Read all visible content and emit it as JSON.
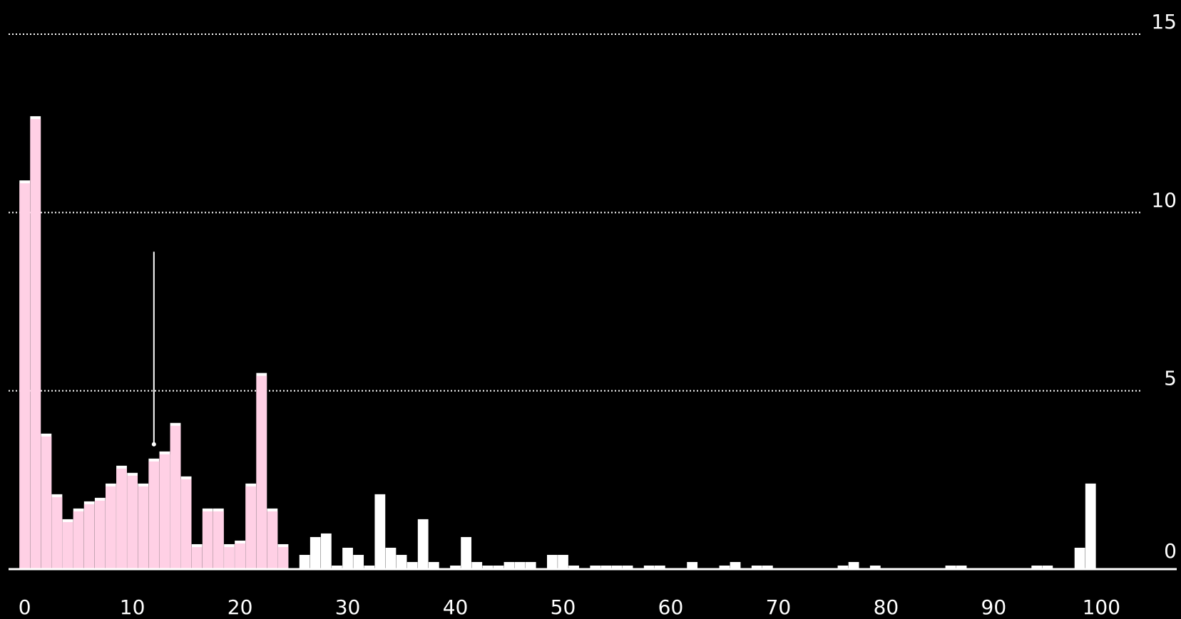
{
  "chart_data": {
    "type": "bar",
    "title": "",
    "xlabel": "",
    "ylabel": "",
    "xlim": [
      -1.5,
      107
    ],
    "ylim": [
      0,
      15
    ],
    "x_ticks": [
      0,
      10,
      20,
      30,
      40,
      50,
      60,
      70,
      80,
      90,
      100
    ],
    "x_tick_labels": [
      "0",
      "10",
      "20",
      "30",
      "40",
      "50",
      "60",
      "70",
      "80",
      "90",
      "100"
    ],
    "y_ticks": [
      0,
      5,
      10,
      15
    ],
    "y_tick_labels": [
      "0",
      "5",
      "10",
      "15"
    ],
    "y_axis_position": "right",
    "grid": "horizontal dotted",
    "annotation_x": 12,
    "annotation_y_top": 8.9,
    "annotation_y_bottom": 3.5,
    "highlight_color": "#ffc8e0",
    "bar_color": "#ffffff",
    "x": [
      0,
      1,
      2,
      3,
      4,
      5,
      6,
      7,
      8,
      9,
      10,
      11,
      12,
      13,
      14,
      15,
      16,
      17,
      18,
      19,
      20,
      21,
      22,
      23,
      24,
      26,
      27,
      28,
      29,
      30,
      31,
      32,
      33,
      34,
      35,
      36,
      37,
      38,
      40,
      41,
      42,
      43,
      44,
      45,
      46,
      47,
      49,
      50,
      51,
      53,
      54,
      55,
      56,
      58,
      59,
      62,
      65,
      66,
      68,
      69,
      76,
      77,
      79,
      86,
      87,
      94,
      95,
      98,
      99
    ],
    "values": [
      10.9,
      12.7,
      3.8,
      2.1,
      1.4,
      1.7,
      1.9,
      2.0,
      2.4,
      2.9,
      2.7,
      2.4,
      3.1,
      3.3,
      4.1,
      2.6,
      0.7,
      1.7,
      1.7,
      0.7,
      0.8,
      2.4,
      5.5,
      1.7,
      0.7,
      0.4,
      0.9,
      1.0,
      0.1,
      0.6,
      0.4,
      0.1,
      2.1,
      0.6,
      0.4,
      0.2,
      1.4,
      0.2,
      0.1,
      0.9,
      0.2,
      0.1,
      0.1,
      0.2,
      0.2,
      0.2,
      0.4,
      0.4,
      0.1,
      0.1,
      0.1,
      0.1,
      0.1,
      0.1,
      0.1,
      0.2,
      0.1,
      0.2,
      0.1,
      0.1,
      0.1,
      0.2,
      0.1,
      0.1,
      0.1,
      0.1,
      0.1,
      0.6,
      2.4
    ],
    "highlighted": [
      true,
      true,
      true,
      true,
      true,
      true,
      true,
      true,
      true,
      true,
      true,
      true,
      true,
      true,
      true,
      true,
      true,
      true,
      true,
      true,
      true,
      true,
      true,
      true,
      true,
      false,
      false,
      false,
      false,
      false,
      false,
      false,
      false,
      false,
      false,
      false,
      false,
      false,
      false,
      false,
      false,
      false,
      false,
      false,
      false,
      false,
      false,
      false,
      false,
      false,
      false,
      false,
      false,
      false,
      false,
      false,
      false,
      false,
      false,
      false,
      false,
      false,
      false,
      false,
      false,
      false,
      false,
      false,
      false
    ]
  }
}
